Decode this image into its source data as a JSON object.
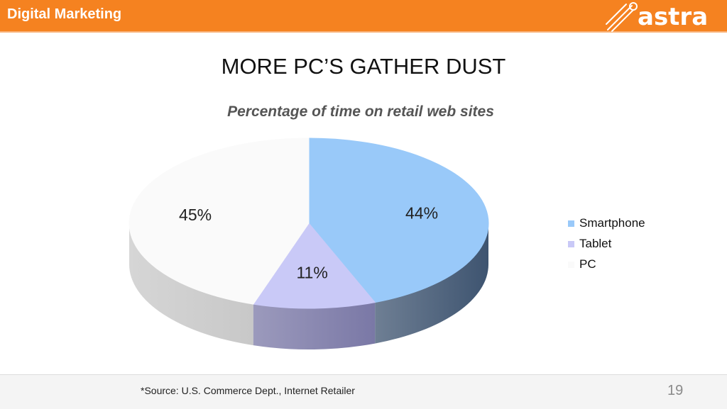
{
  "header": {
    "title": "Digital Marketing",
    "logo_text": "astra",
    "color": "#f58220"
  },
  "slide": {
    "title": "MORE PC’S GATHER DUST"
  },
  "chart_data": {
    "type": "pie",
    "title": "Percentage of time on retail web sites",
    "slices": [
      {
        "label": "Smartphone",
        "value": 44,
        "display": "44%",
        "color": "#99c9f9",
        "side_color": "#3e5470"
      },
      {
        "label": "Tablet",
        "value": 11,
        "display": "11%",
        "color": "#c9c9f7",
        "side_color": "#7a78a6"
      },
      {
        "label": "PC",
        "value": 45,
        "display": "45%",
        "color": "#fafafa",
        "side_color": "#c8c8c8"
      }
    ],
    "legend_position": "right",
    "style": "3d"
  },
  "footer": {
    "source": "*Source: U.S. Commerce Dept., Internet Retailer",
    "page_number": "19"
  }
}
